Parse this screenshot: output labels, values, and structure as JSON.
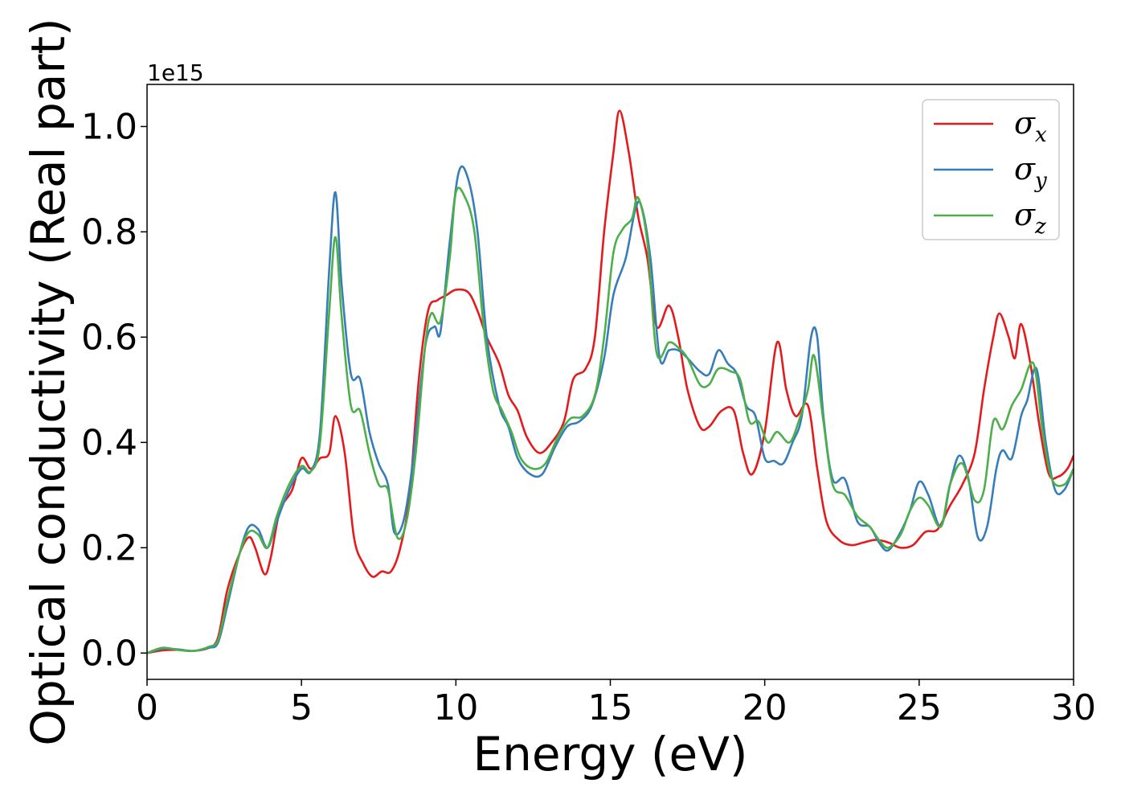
{
  "chart_data": {
    "type": "line",
    "title": "",
    "xlabel": "Energy (eV)",
    "ylabel": "Optical conductivity (Real part)",
    "y_offset_label": "1e15",
    "xlim": [
      0,
      30
    ],
    "ylim": [
      -0.05,
      1.08
    ],
    "xticks": [
      "0",
      "5",
      "10",
      "15",
      "20",
      "25",
      "30"
    ],
    "xtick_values": [
      0,
      5,
      10,
      15,
      20,
      25,
      30
    ],
    "yticks": [
      "0.0",
      "0.2",
      "0.4",
      "0.6",
      "0.8",
      "1.0"
    ],
    "ytick_values": [
      0.0,
      0.2,
      0.4,
      0.6,
      0.8,
      1.0
    ],
    "legend_position": "top-right",
    "grid": false,
    "series": [
      {
        "name": "σx",
        "label_main": "σ",
        "label_sub": "x",
        "color": "#e41a1c",
        "points": [
          [
            0,
            0
          ],
          [
            0.5,
            0.005
          ],
          [
            1,
            0.006
          ],
          [
            1.5,
            0.004
          ],
          [
            2,
            0.01
          ],
          [
            2.3,
            0.03
          ],
          [
            2.6,
            0.12
          ],
          [
            3.0,
            0.19
          ],
          [
            3.3,
            0.22
          ],
          [
            3.5,
            0.2
          ],
          [
            3.8,
            0.15
          ],
          [
            4.0,
            0.18
          ],
          [
            4.3,
            0.27
          ],
          [
            4.7,
            0.31
          ],
          [
            5.0,
            0.37
          ],
          [
            5.3,
            0.35
          ],
          [
            5.6,
            0.37
          ],
          [
            5.9,
            0.38
          ],
          [
            6.1,
            0.45
          ],
          [
            6.4,
            0.38
          ],
          [
            6.7,
            0.22
          ],
          [
            7.0,
            0.17
          ],
          [
            7.3,
            0.145
          ],
          [
            7.6,
            0.155
          ],
          [
            7.9,
            0.155
          ],
          [
            8.2,
            0.2
          ],
          [
            8.5,
            0.3
          ],
          [
            8.8,
            0.52
          ],
          [
            9.1,
            0.65
          ],
          [
            9.4,
            0.67
          ],
          [
            9.7,
            0.68
          ],
          [
            10.0,
            0.69
          ],
          [
            10.4,
            0.685
          ],
          [
            10.7,
            0.65
          ],
          [
            11.0,
            0.6
          ],
          [
            11.4,
            0.55
          ],
          [
            11.7,
            0.49
          ],
          [
            12.0,
            0.46
          ],
          [
            12.3,
            0.41
          ],
          [
            12.7,
            0.38
          ],
          [
            13.1,
            0.4
          ],
          [
            13.5,
            0.44
          ],
          [
            13.8,
            0.52
          ],
          [
            14.2,
            0.54
          ],
          [
            14.5,
            0.6
          ],
          [
            14.8,
            0.8
          ],
          [
            15.1,
            0.95
          ],
          [
            15.3,
            1.03
          ],
          [
            15.6,
            0.95
          ],
          [
            15.9,
            0.83
          ],
          [
            16.2,
            0.75
          ],
          [
            16.5,
            0.62
          ],
          [
            16.9,
            0.66
          ],
          [
            17.2,
            0.6
          ],
          [
            17.5,
            0.5
          ],
          [
            17.9,
            0.43
          ],
          [
            18.2,
            0.43
          ],
          [
            18.6,
            0.46
          ],
          [
            19.0,
            0.46
          ],
          [
            19.3,
            0.38
          ],
          [
            19.6,
            0.34
          ],
          [
            20.0,
            0.42
          ],
          [
            20.4,
            0.59
          ],
          [
            20.7,
            0.5
          ],
          [
            21.0,
            0.45
          ],
          [
            21.4,
            0.47
          ],
          [
            21.7,
            0.35
          ],
          [
            22.0,
            0.25
          ],
          [
            22.4,
            0.215
          ],
          [
            22.8,
            0.205
          ],
          [
            23.2,
            0.21
          ],
          [
            23.6,
            0.215
          ],
          [
            24.0,
            0.21
          ],
          [
            24.4,
            0.2
          ],
          [
            24.8,
            0.205
          ],
          [
            25.2,
            0.23
          ],
          [
            25.6,
            0.235
          ],
          [
            26.0,
            0.28
          ],
          [
            26.4,
            0.32
          ],
          [
            26.8,
            0.38
          ],
          [
            27.1,
            0.5
          ],
          [
            27.4,
            0.6
          ],
          [
            27.6,
            0.645
          ],
          [
            27.9,
            0.6
          ],
          [
            28.1,
            0.56
          ],
          [
            28.3,
            0.625
          ],
          [
            28.6,
            0.55
          ],
          [
            28.9,
            0.43
          ],
          [
            29.2,
            0.34
          ],
          [
            29.5,
            0.335
          ],
          [
            29.8,
            0.35
          ],
          [
            30.0,
            0.375
          ]
        ]
      },
      {
        "name": "σy",
        "label_main": "σ",
        "label_sub": "y",
        "color": "#377eb8",
        "points": [
          [
            0,
            0
          ],
          [
            0.5,
            0.008
          ],
          [
            1,
            0.007
          ],
          [
            1.5,
            0.004
          ],
          [
            2,
            0.01
          ],
          [
            2.3,
            0.02
          ],
          [
            2.6,
            0.09
          ],
          [
            3.0,
            0.19
          ],
          [
            3.3,
            0.24
          ],
          [
            3.6,
            0.235
          ],
          [
            3.9,
            0.2
          ],
          [
            4.2,
            0.25
          ],
          [
            4.6,
            0.31
          ],
          [
            5.0,
            0.35
          ],
          [
            5.3,
            0.345
          ],
          [
            5.6,
            0.42
          ],
          [
            5.9,
            0.73
          ],
          [
            6.1,
            0.875
          ],
          [
            6.3,
            0.7
          ],
          [
            6.6,
            0.53
          ],
          [
            6.9,
            0.52
          ],
          [
            7.2,
            0.42
          ],
          [
            7.5,
            0.36
          ],
          [
            7.8,
            0.32
          ],
          [
            8.0,
            0.23
          ],
          [
            8.3,
            0.25
          ],
          [
            8.6,
            0.36
          ],
          [
            9.0,
            0.58
          ],
          [
            9.3,
            0.62
          ],
          [
            9.5,
            0.61
          ],
          [
            9.8,
            0.78
          ],
          [
            10.1,
            0.915
          ],
          [
            10.4,
            0.9
          ],
          [
            10.7,
            0.8
          ],
          [
            11.0,
            0.6
          ],
          [
            11.4,
            0.47
          ],
          [
            11.7,
            0.43
          ],
          [
            12.0,
            0.37
          ],
          [
            12.4,
            0.34
          ],
          [
            12.8,
            0.34
          ],
          [
            13.2,
            0.39
          ],
          [
            13.6,
            0.43
          ],
          [
            14.0,
            0.44
          ],
          [
            14.4,
            0.47
          ],
          [
            14.8,
            0.56
          ],
          [
            15.1,
            0.68
          ],
          [
            15.5,
            0.75
          ],
          [
            15.8,
            0.84
          ],
          [
            16.0,
            0.85
          ],
          [
            16.3,
            0.75
          ],
          [
            16.6,
            0.56
          ],
          [
            16.9,
            0.575
          ],
          [
            17.2,
            0.575
          ],
          [
            17.5,
            0.56
          ],
          [
            17.9,
            0.535
          ],
          [
            18.2,
            0.53
          ],
          [
            18.5,
            0.575
          ],
          [
            18.8,
            0.55
          ],
          [
            19.1,
            0.53
          ],
          [
            19.4,
            0.47
          ],
          [
            19.7,
            0.45
          ],
          [
            20.0,
            0.37
          ],
          [
            20.3,
            0.365
          ],
          [
            20.6,
            0.36
          ],
          [
            20.9,
            0.4
          ],
          [
            21.2,
            0.45
          ],
          [
            21.5,
            0.6
          ],
          [
            21.7,
            0.6
          ],
          [
            21.9,
            0.45
          ],
          [
            22.2,
            0.33
          ],
          [
            22.6,
            0.33
          ],
          [
            23.0,
            0.25
          ],
          [
            23.4,
            0.24
          ],
          [
            23.7,
            0.21
          ],
          [
            24.0,
            0.195
          ],
          [
            24.4,
            0.23
          ],
          [
            24.7,
            0.27
          ],
          [
            25.0,
            0.325
          ],
          [
            25.3,
            0.3
          ],
          [
            25.7,
            0.24
          ],
          [
            26.0,
            0.32
          ],
          [
            26.3,
            0.375
          ],
          [
            26.6,
            0.33
          ],
          [
            26.9,
            0.22
          ],
          [
            27.2,
            0.24
          ],
          [
            27.5,
            0.35
          ],
          [
            27.7,
            0.385
          ],
          [
            28.0,
            0.37
          ],
          [
            28.3,
            0.45
          ],
          [
            28.5,
            0.48
          ],
          [
            28.8,
            0.54
          ],
          [
            29.1,
            0.4
          ],
          [
            29.4,
            0.31
          ],
          [
            29.7,
            0.31
          ],
          [
            30.0,
            0.35
          ]
        ]
      },
      {
        "name": "σz",
        "label_main": "σ",
        "label_sub": "z",
        "color": "#4daf4a",
        "points": [
          [
            0,
            0
          ],
          [
            0.5,
            0.01
          ],
          [
            1,
            0.006
          ],
          [
            1.5,
            0.004
          ],
          [
            2,
            0.012
          ],
          [
            2.3,
            0.025
          ],
          [
            2.6,
            0.1
          ],
          [
            3.0,
            0.19
          ],
          [
            3.3,
            0.23
          ],
          [
            3.6,
            0.225
          ],
          [
            3.9,
            0.2
          ],
          [
            4.2,
            0.26
          ],
          [
            4.6,
            0.32
          ],
          [
            5.0,
            0.355
          ],
          [
            5.3,
            0.345
          ],
          [
            5.6,
            0.4
          ],
          [
            5.9,
            0.65
          ],
          [
            6.1,
            0.79
          ],
          [
            6.3,
            0.64
          ],
          [
            6.6,
            0.47
          ],
          [
            6.9,
            0.46
          ],
          [
            7.2,
            0.38
          ],
          [
            7.5,
            0.32
          ],
          [
            7.8,
            0.31
          ],
          [
            8.1,
            0.22
          ],
          [
            8.4,
            0.25
          ],
          [
            8.7,
            0.38
          ],
          [
            9.0,
            0.58
          ],
          [
            9.2,
            0.645
          ],
          [
            9.5,
            0.63
          ],
          [
            9.8,
            0.75
          ],
          [
            10.0,
            0.875
          ],
          [
            10.3,
            0.865
          ],
          [
            10.6,
            0.8
          ],
          [
            10.9,
            0.62
          ],
          [
            11.2,
            0.5
          ],
          [
            11.5,
            0.46
          ],
          [
            11.8,
            0.42
          ],
          [
            12.1,
            0.37
          ],
          [
            12.5,
            0.35
          ],
          [
            12.9,
            0.36
          ],
          [
            13.3,
            0.41
          ],
          [
            13.7,
            0.445
          ],
          [
            14.1,
            0.45
          ],
          [
            14.5,
            0.49
          ],
          [
            14.8,
            0.6
          ],
          [
            15.1,
            0.76
          ],
          [
            15.4,
            0.805
          ],
          [
            15.7,
            0.825
          ],
          [
            15.9,
            0.865
          ],
          [
            16.2,
            0.78
          ],
          [
            16.5,
            0.57
          ],
          [
            16.9,
            0.59
          ],
          [
            17.2,
            0.58
          ],
          [
            17.5,
            0.56
          ],
          [
            17.9,
            0.51
          ],
          [
            18.2,
            0.51
          ],
          [
            18.5,
            0.54
          ],
          [
            18.9,
            0.535
          ],
          [
            19.2,
            0.52
          ],
          [
            19.5,
            0.44
          ],
          [
            19.8,
            0.44
          ],
          [
            20.1,
            0.4
          ],
          [
            20.4,
            0.42
          ],
          [
            20.8,
            0.4
          ],
          [
            21.1,
            0.44
          ],
          [
            21.4,
            0.5
          ],
          [
            21.6,
            0.565
          ],
          [
            21.9,
            0.44
          ],
          [
            22.2,
            0.32
          ],
          [
            22.6,
            0.3
          ],
          [
            23.0,
            0.26
          ],
          [
            23.4,
            0.24
          ],
          [
            23.7,
            0.215
          ],
          [
            24.0,
            0.2
          ],
          [
            24.4,
            0.225
          ],
          [
            24.7,
            0.27
          ],
          [
            25.0,
            0.295
          ],
          [
            25.3,
            0.28
          ],
          [
            25.7,
            0.24
          ],
          [
            26.0,
            0.32
          ],
          [
            26.4,
            0.36
          ],
          [
            26.8,
            0.29
          ],
          [
            27.1,
            0.31
          ],
          [
            27.4,
            0.44
          ],
          [
            27.7,
            0.425
          ],
          [
            28.0,
            0.47
          ],
          [
            28.3,
            0.5
          ],
          [
            28.7,
            0.55
          ],
          [
            29.0,
            0.42
          ],
          [
            29.3,
            0.33
          ],
          [
            29.7,
            0.32
          ],
          [
            30.0,
            0.35
          ]
        ]
      }
    ]
  }
}
